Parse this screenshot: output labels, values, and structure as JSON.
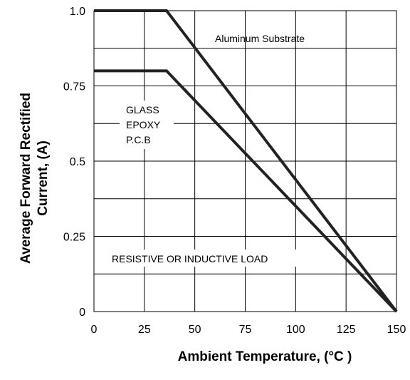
{
  "chart_data": {
    "type": "line",
    "xlabel": "Ambient  Temperature, (°C )",
    "ylabel_lines": [
      "Average Forward Rectified",
      "Current, (A)"
    ],
    "xlim": [
      0,
      150
    ],
    "ylim": [
      0,
      1.0
    ],
    "x_ticks": [
      0,
      25,
      50,
      75,
      100,
      125,
      150
    ],
    "x_tick_labels": [
      "0",
      "25",
      "50",
      "75",
      "100",
      "125",
      "150"
    ],
    "y_ticks": [
      0,
      0.25,
      0.5,
      0.75,
      1.0
    ],
    "y_tick_labels": [
      "0",
      "0.25",
      "0.5",
      "0.75",
      "1.0"
    ],
    "x_grid": [
      0,
      25,
      50,
      75,
      100,
      125,
      150
    ],
    "y_grid": [
      0,
      0.125,
      0.25,
      0.375,
      0.5,
      0.625,
      0.75,
      0.875,
      1.0
    ],
    "grid": true,
    "series": [
      {
        "name": "Aluminum Substrate",
        "x": [
          0,
          36,
          150
        ],
        "y": [
          1.0,
          1.0,
          0
        ]
      },
      {
        "name": "GLASS EPOXY P.C.B",
        "x": [
          0,
          36,
          150
        ],
        "y": [
          0.8,
          0.8,
          0
        ]
      }
    ],
    "annotations": {
      "aluminum": "Aluminum Substrate",
      "glass_lines": [
        "GLASS",
        "EPOXY",
        "P.C.B"
      ],
      "load": "RESISTIVE OR INDUCTIVE LOAD"
    }
  }
}
